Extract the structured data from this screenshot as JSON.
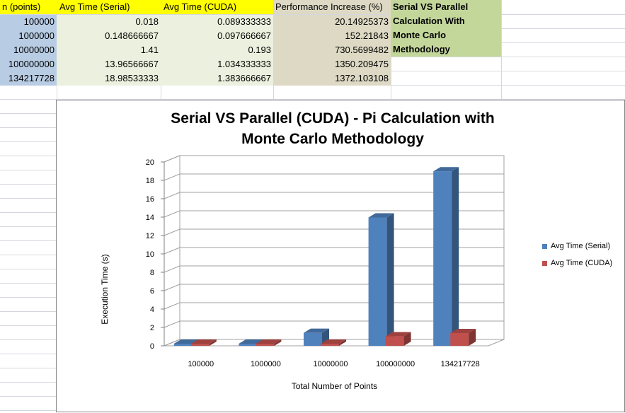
{
  "sheet": {
    "headers": [
      "n (points)",
      "Avg Time (Serial)",
      "Avg Time (CUDA)",
      "Performance Increase (%)"
    ],
    "rows": [
      [
        "100000",
        "0.018",
        "0.089333333",
        "20.14925373"
      ],
      [
        "1000000",
        "0.148666667",
        "0.097666667",
        "152.21843"
      ],
      [
        "10000000",
        "1.41",
        "0.193",
        "730.5699482"
      ],
      [
        "100000000",
        "13.96566667",
        "1.034333333",
        "1350.209475"
      ],
      [
        "134217728",
        "18.98533333",
        "1.383666667",
        "1372.103108"
      ]
    ],
    "note_lines": [
      "Serial VS Parallel",
      "Calculation With",
      "Monte Carlo",
      "Methodology"
    ]
  },
  "colors": {
    "serial": "#4f81bd",
    "cuda": "#c0504d",
    "header_yellow": "#ffff00",
    "header_tan": "#ddd9c4",
    "note_green": "#c4d79b",
    "n_column": "#b8cce4",
    "serial_column": "#ebf1de"
  },
  "chart_data": {
    "type": "bar",
    "title_lines": [
      "Serial VS Parallel (CUDA) - Pi Calculation with",
      "Monte Carlo Methodology"
    ],
    "xlabel": "Total Number of Points",
    "ylabel": "Execution Time (s)",
    "categories": [
      "100000",
      "1000000",
      "10000000",
      "100000000",
      "134217728"
    ],
    "series": [
      {
        "name": "Avg Time  (Serial)",
        "values": [
          0.018,
          0.148666667,
          1.41,
          13.96566667,
          18.98533333
        ]
      },
      {
        "name": "Avg Time  (CUDA)",
        "values": [
          0.089333333,
          0.097666667,
          0.193,
          1.034333333,
          1.383666667
        ]
      }
    ],
    "yticks": [
      "0",
      "2",
      "4",
      "6",
      "8",
      "10",
      "12",
      "14",
      "16",
      "18",
      "20"
    ],
    "ylim": [
      0,
      20
    ],
    "style": "3d-clustered-column",
    "grid": true,
    "legend": "right"
  }
}
